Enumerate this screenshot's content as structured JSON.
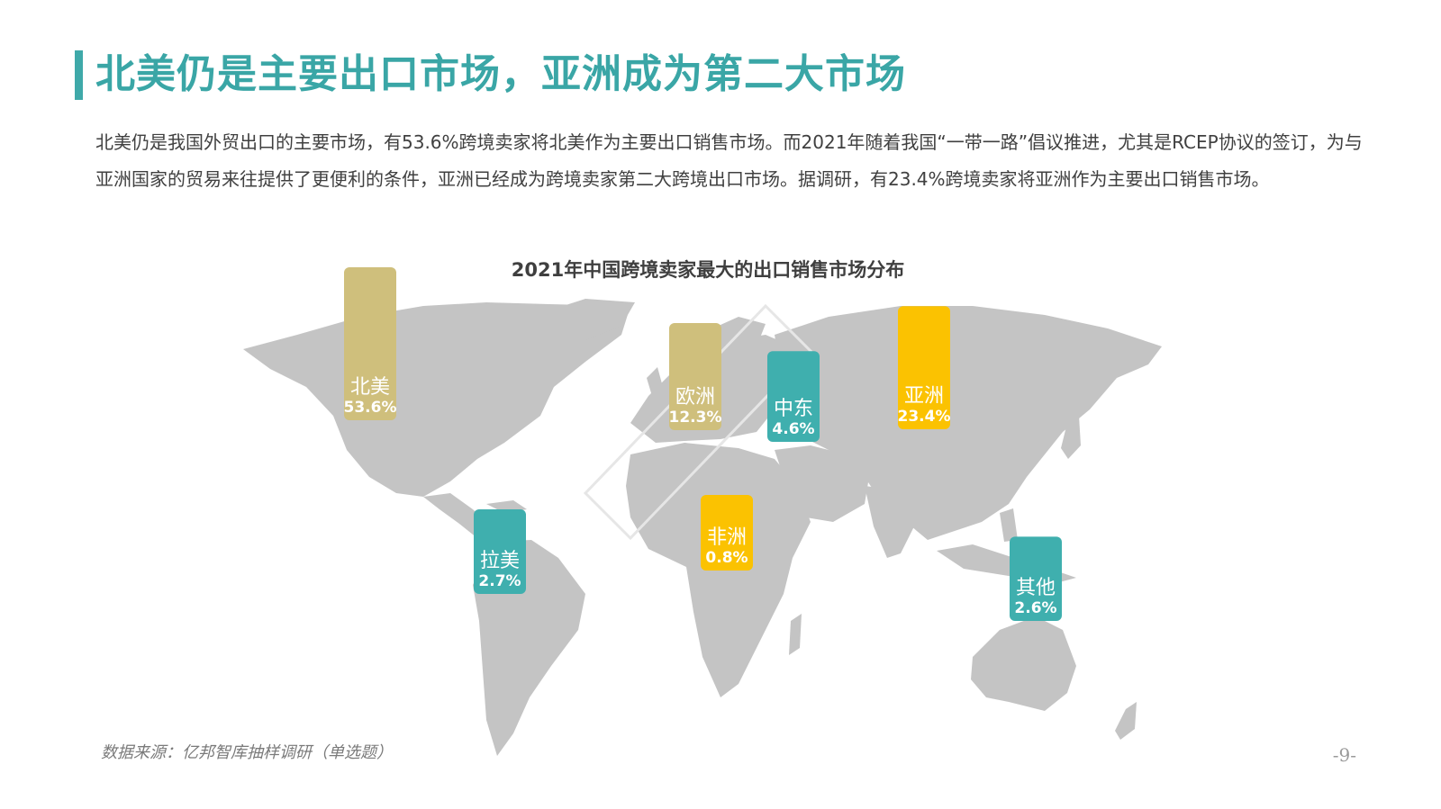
{
  "header": {
    "title": "北美仍是主要出口市场，亚洲成为第二大市场"
  },
  "intro": {
    "text": "北美仍是我国外贸出口的主要市场，有53.6%跨境卖家将北美作为主要出口销售市场。而2021年随着我国“一带一路”倡议推进，尤其是RCEP协议的签订，为与亚洲国家的贸易来往提供了更便利的条件，亚洲已经成为跨境卖家第二大跨境出口市场。据调研，有23.4%跨境卖家将亚洲作为主要出口销售市场。"
  },
  "footer": {
    "source": "数据来源：亿邦智库抽样调研（单选题）",
    "page": "-9-"
  },
  "colors": {
    "accent": "#3fa9a9",
    "gold": "#cfbf7c",
    "yellow": "#fbc201",
    "teal": "#3fafae",
    "map": "#c4c4c4"
  },
  "chart_data": {
    "type": "bar",
    "title": "2021年中国跨境卖家最大的出口销售市场分布",
    "unit": "%",
    "categories": [
      "北美",
      "欧洲",
      "中东",
      "亚洲",
      "拉美",
      "非洲",
      "其他"
    ],
    "values": [
      53.6,
      12.3,
      4.6,
      23.4,
      2.7,
      0.8,
      2.6
    ],
    "labels": [
      "53.6%",
      "12.3%",
      "4.6%",
      "23.4%",
      "2.7%",
      "0.8%",
      "2.6%"
    ],
    "colors": [
      "#cfbf7c",
      "#cfbf7c",
      "#3fafae",
      "#fbc201",
      "#3fafae",
      "#fbc201",
      "#3fafae"
    ]
  }
}
